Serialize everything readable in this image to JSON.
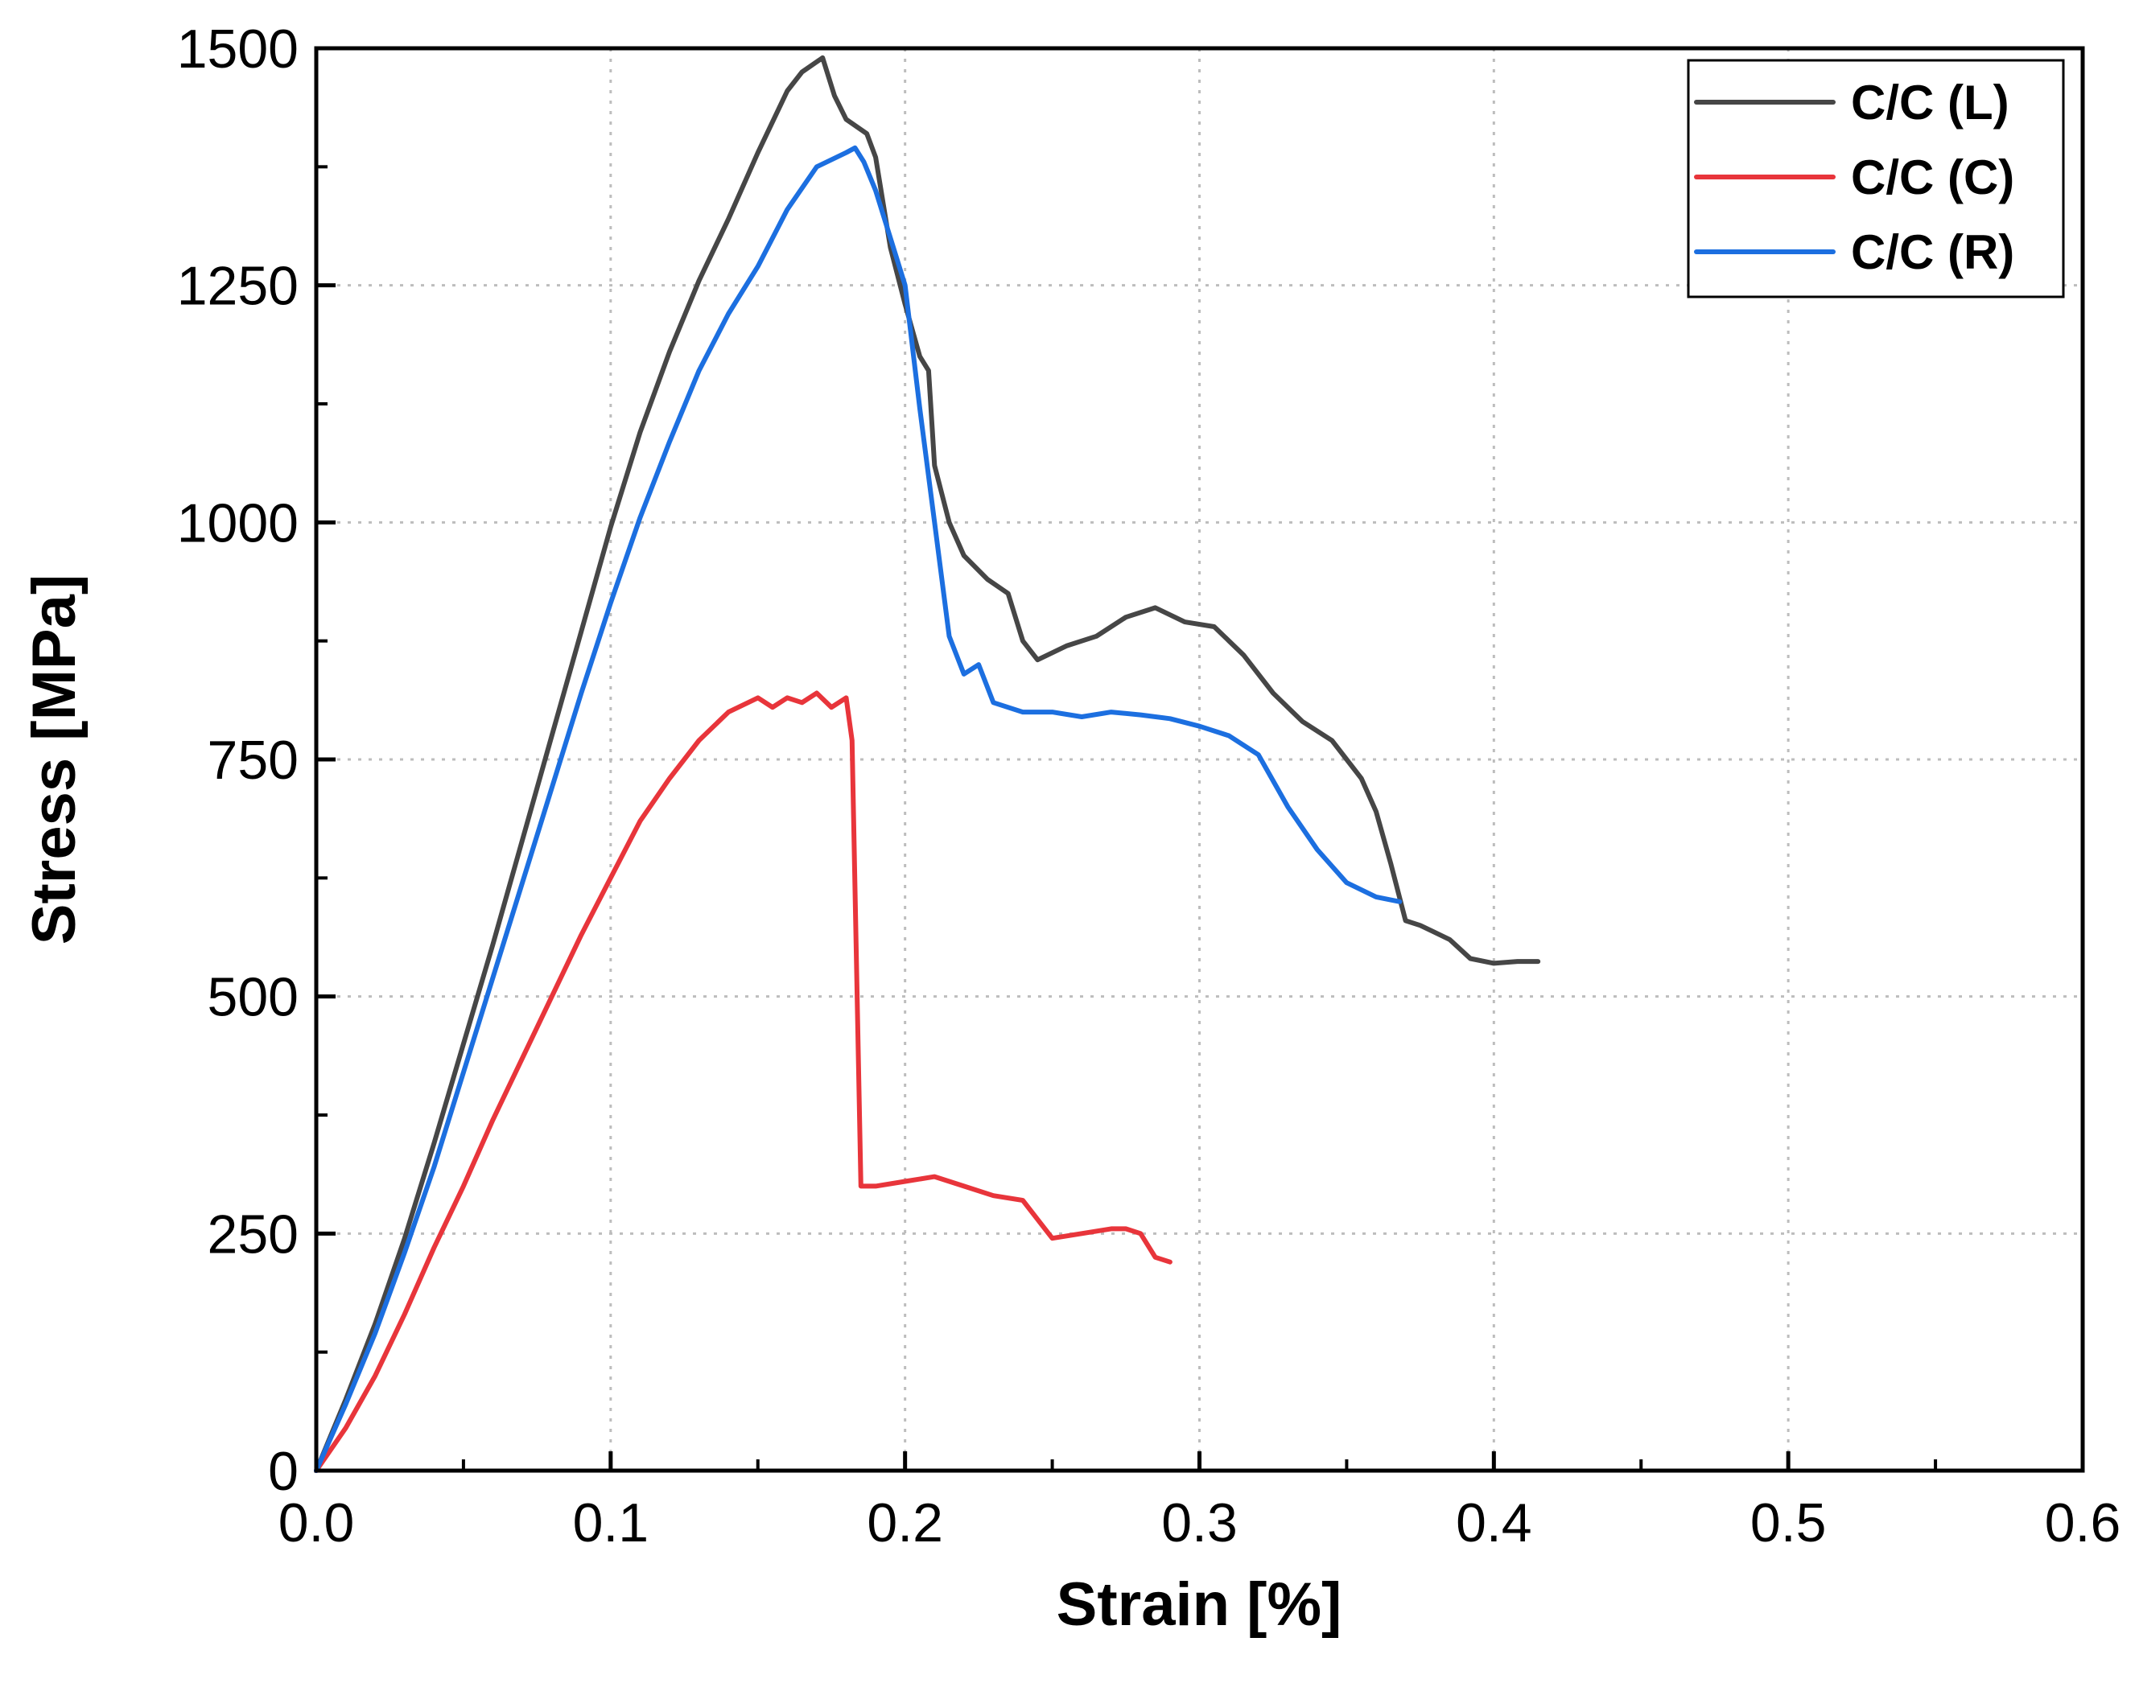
{
  "chart_data": {
    "type": "line",
    "title": "",
    "xlabel": "Strain [%]",
    "ylabel": "Stress [MPa]",
    "xlim": [
      0,
      0.6
    ],
    "ylim": [
      0,
      1500
    ],
    "xticks": [
      0.0,
      0.1,
      0.2,
      0.3,
      0.4,
      0.5,
      0.6
    ],
    "xtick_labels": [
      "0.0",
      "0.1",
      "0.2",
      "0.3",
      "0.4",
      "0.5",
      "0.6"
    ],
    "yticks": [
      0,
      250,
      500,
      750,
      1000,
      1250,
      1500
    ],
    "ytick_labels": [
      "0",
      "250",
      "500",
      "750",
      "1000",
      "1250",
      "1500"
    ],
    "grid": true,
    "legend_position": "top-right",
    "series": [
      {
        "name": "C/C (L)",
        "color": "#464646",
        "points": [
          [
            0,
            0
          ],
          [
            0.01,
            75
          ],
          [
            0.02,
            155
          ],
          [
            0.03,
            245
          ],
          [
            0.04,
            345
          ],
          [
            0.05,
            450
          ],
          [
            0.06,
            555
          ],
          [
            0.07,
            665
          ],
          [
            0.08,
            775
          ],
          [
            0.09,
            885
          ],
          [
            0.1,
            995
          ],
          [
            0.11,
            1095
          ],
          [
            0.12,
            1180
          ],
          [
            0.13,
            1255
          ],
          [
            0.14,
            1320
          ],
          [
            0.15,
            1390
          ],
          [
            0.16,
            1455
          ],
          [
            0.165,
            1475
          ],
          [
            0.172,
            1490
          ],
          [
            0.176,
            1450
          ],
          [
            0.18,
            1425
          ],
          [
            0.187,
            1410
          ],
          [
            0.19,
            1385
          ],
          [
            0.195,
            1290
          ],
          [
            0.2,
            1230
          ],
          [
            0.205,
            1175
          ],
          [
            0.208,
            1160
          ],
          [
            0.21,
            1060
          ],
          [
            0.215,
            1000
          ],
          [
            0.22,
            965
          ],
          [
            0.228,
            940
          ],
          [
            0.235,
            925
          ],
          [
            0.24,
            875
          ],
          [
            0.245,
            855
          ],
          [
            0.255,
            870
          ],
          [
            0.265,
            880
          ],
          [
            0.275,
            900
          ],
          [
            0.285,
            910
          ],
          [
            0.295,
            895
          ],
          [
            0.305,
            890
          ],
          [
            0.315,
            860
          ],
          [
            0.325,
            820
          ],
          [
            0.335,
            790
          ],
          [
            0.345,
            770
          ],
          [
            0.355,
            730
          ],
          [
            0.36,
            695
          ],
          [
            0.365,
            640
          ],
          [
            0.37,
            580
          ],
          [
            0.375,
            575
          ],
          [
            0.385,
            560
          ],
          [
            0.392,
            540
          ],
          [
            0.4,
            535
          ],
          [
            0.408,
            537
          ],
          [
            0.415,
            537
          ]
        ]
      },
      {
        "name": "C/C (C)",
        "color": "#e8353b",
        "points": [
          [
            0,
            0
          ],
          [
            0.01,
            45
          ],
          [
            0.02,
            100
          ],
          [
            0.03,
            165
          ],
          [
            0.04,
            235
          ],
          [
            0.05,
            300
          ],
          [
            0.06,
            370
          ],
          [
            0.07,
            435
          ],
          [
            0.08,
            500
          ],
          [
            0.09,
            565
          ],
          [
            0.1,
            625
          ],
          [
            0.11,
            685
          ],
          [
            0.12,
            730
          ],
          [
            0.13,
            770
          ],
          [
            0.14,
            800
          ],
          [
            0.15,
            815
          ],
          [
            0.155,
            805
          ],
          [
            0.16,
            815
          ],
          [
            0.165,
            810
          ],
          [
            0.17,
            820
          ],
          [
            0.175,
            805
          ],
          [
            0.18,
            815
          ],
          [
            0.182,
            770
          ],
          [
            0.185,
            300
          ],
          [
            0.19,
            300
          ],
          [
            0.2,
            305
          ],
          [
            0.21,
            310
          ],
          [
            0.22,
            300
          ],
          [
            0.23,
            290
          ],
          [
            0.24,
            285
          ],
          [
            0.245,
            265
          ],
          [
            0.25,
            245
          ],
          [
            0.26,
            250
          ],
          [
            0.27,
            255
          ],
          [
            0.275,
            255
          ],
          [
            0.28,
            250
          ],
          [
            0.285,
            225
          ],
          [
            0.29,
            220
          ]
        ]
      },
      {
        "name": "C/C (R)",
        "color": "#1c6fe0",
        "points": [
          [
            0,
            0
          ],
          [
            0.01,
            70
          ],
          [
            0.02,
            145
          ],
          [
            0.03,
            230
          ],
          [
            0.04,
            320
          ],
          [
            0.05,
            420
          ],
          [
            0.06,
            520
          ],
          [
            0.07,
            620
          ],
          [
            0.08,
            720
          ],
          [
            0.09,
            820
          ],
          [
            0.1,
            915
          ],
          [
            0.11,
            1005
          ],
          [
            0.12,
            1085
          ],
          [
            0.13,
            1160
          ],
          [
            0.14,
            1220
          ],
          [
            0.15,
            1270
          ],
          [
            0.16,
            1330
          ],
          [
            0.17,
            1375
          ],
          [
            0.18,
            1390
          ],
          [
            0.183,
            1395
          ],
          [
            0.186,
            1380
          ],
          [
            0.19,
            1350
          ],
          [
            0.195,
            1300
          ],
          [
            0.2,
            1250
          ],
          [
            0.205,
            1120
          ],
          [
            0.21,
            1000
          ],
          [
            0.215,
            880
          ],
          [
            0.22,
            840
          ],
          [
            0.225,
            850
          ],
          [
            0.23,
            810
          ],
          [
            0.24,
            800
          ],
          [
            0.25,
            800
          ],
          [
            0.26,
            795
          ],
          [
            0.27,
            800
          ],
          [
            0.28,
            797
          ],
          [
            0.29,
            793
          ],
          [
            0.3,
            785
          ],
          [
            0.31,
            775
          ],
          [
            0.32,
            755
          ],
          [
            0.33,
            700
          ],
          [
            0.34,
            655
          ],
          [
            0.35,
            620
          ],
          [
            0.36,
            605
          ],
          [
            0.368,
            600
          ]
        ]
      }
    ]
  }
}
